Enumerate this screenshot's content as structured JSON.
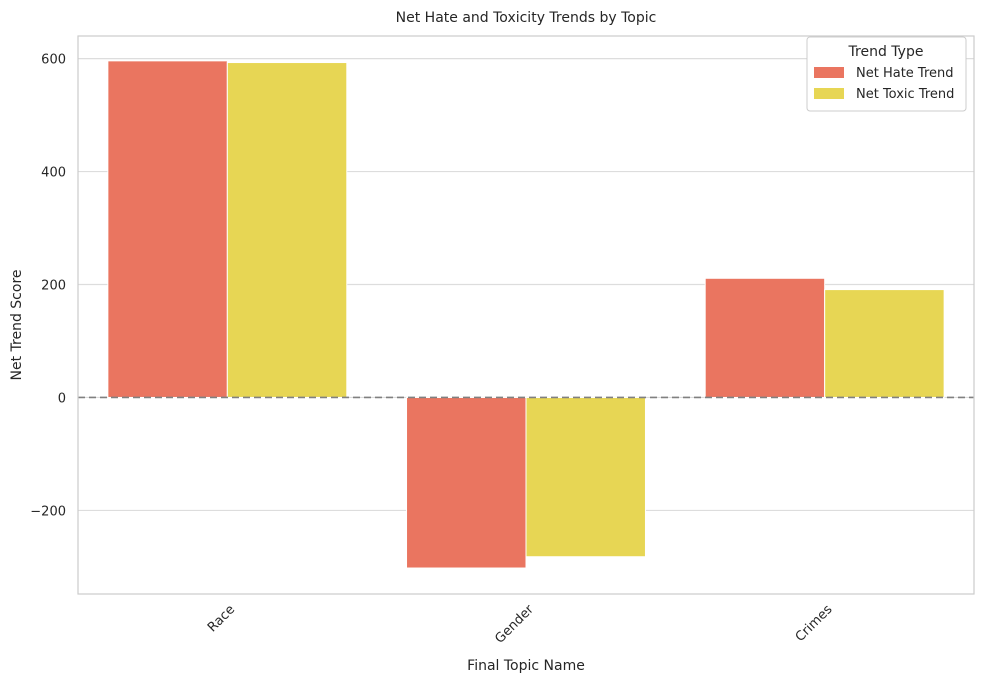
{
  "chart_data": {
    "type": "bar",
    "title": "Net Hate and Toxicity Trends by Topic",
    "xlabel": "Final Topic Name",
    "ylabel": "Net Trend Score",
    "categories": [
      "Race",
      "Gender",
      "Crimes"
    ],
    "series": [
      {
        "name": "Net Hate Trend",
        "color": "#ea7560",
        "values": [
          596,
          -302,
          211
        ]
      },
      {
        "name": "Net Toxic Trend",
        "color": "#e7d654",
        "values": [
          593,
          -282,
          191
        ]
      }
    ],
    "ylim": [
      -348,
      640
    ],
    "yticks": [
      {
        "value": 600,
        "label": "600"
      },
      {
        "value": 400,
        "label": "400"
      },
      {
        "value": 200,
        "label": "200"
      },
      {
        "value": 0,
        "label": "0"
      },
      {
        "value": -200,
        "label": "−200"
      }
    ],
    "reference_line": {
      "value": 0,
      "style": "dashed",
      "color": "#808080"
    },
    "grid": "horizontal",
    "xtick_rotation_deg": 45,
    "legend": {
      "title": "Trend Type",
      "placement": "top-right",
      "entries": [
        "Net Hate Trend",
        "Net Toxic Trend"
      ]
    }
  }
}
